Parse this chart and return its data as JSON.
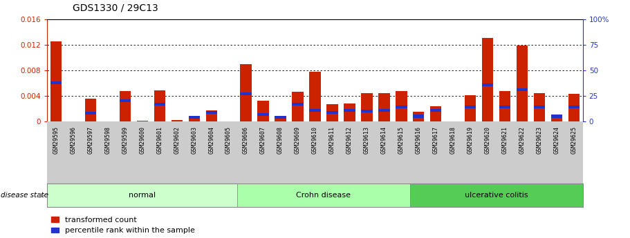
{
  "title": "GDS1330 / 29C13",
  "samples": [
    "GSM29595",
    "GSM29596",
    "GSM29597",
    "GSM29598",
    "GSM29599",
    "GSM29600",
    "GSM29601",
    "GSM29602",
    "GSM29603",
    "GSM29604",
    "GSM29605",
    "GSM29606",
    "GSM29607",
    "GSM29608",
    "GSM29609",
    "GSM29610",
    "GSM29611",
    "GSM29612",
    "GSM29613",
    "GSM29614",
    "GSM29615",
    "GSM29616",
    "GSM29617",
    "GSM29618",
    "GSM29619",
    "GSM29620",
    "GSM29621",
    "GSM29622",
    "GSM29623",
    "GSM29624",
    "GSM29625"
  ],
  "red_values": [
    0.01255,
    0.0,
    0.0036,
    0.0,
    0.0047,
    0.0001,
    0.0049,
    0.00025,
    0.0007,
    0.0017,
    0.0,
    0.009,
    0.0032,
    0.0008,
    0.0046,
    0.00775,
    0.0027,
    0.00285,
    0.0044,
    0.0044,
    0.0047,
    0.0015,
    0.00235,
    0.0,
    0.0041,
    0.013,
    0.0047,
    0.0119,
    0.0044,
    0.00085,
    0.0043
  ],
  "blue_percentiles": [
    38,
    0,
    8,
    0,
    20,
    0,
    17,
    0,
    4,
    9,
    0,
    27,
    7,
    4,
    17,
    11,
    9,
    11,
    10,
    11,
    14,
    5,
    11,
    0,
    14,
    36,
    14,
    31,
    14,
    5,
    14
  ],
  "groups": [
    {
      "label": "normal",
      "start": 0,
      "end": 10,
      "color": "#ccffcc"
    },
    {
      "label": "Crohn disease",
      "start": 11,
      "end": 20,
      "color": "#aaffaa"
    },
    {
      "label": "ulcerative colitis",
      "start": 21,
      "end": 30,
      "color": "#55cc55"
    }
  ],
  "ylim_left": [
    0,
    0.016
  ],
  "ylim_right": [
    0,
    100
  ],
  "yticks_left": [
    0,
    0.004,
    0.008,
    0.012,
    0.016
  ],
  "ytick_labels_left": [
    "0",
    "0.004",
    "0.008",
    "0.012",
    "0.016"
  ],
  "yticks_right": [
    0,
    25,
    50,
    75,
    100
  ],
  "ytick_labels_right": [
    "0",
    "25",
    "50",
    "75",
    "100%"
  ],
  "bar_color": "#cc2200",
  "blue_color": "#2233cc",
  "bar_width": 0.65,
  "title_fontsize": 10,
  "disease_state_label": "disease state",
  "legend_items": [
    "transformed count",
    "percentile rank within the sample"
  ],
  "grid_yticks": [
    0.004,
    0.008,
    0.012
  ],
  "xticklabel_fontsize": 6,
  "strip_color": "#cccccc",
  "group_border_color": "#888888"
}
